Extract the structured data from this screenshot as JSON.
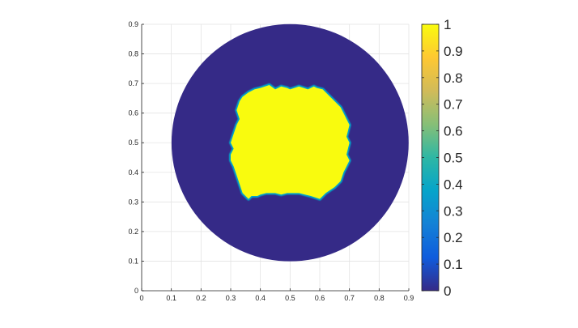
{
  "chart_data": {
    "type": "heatmap",
    "title": "",
    "xlabel": "",
    "ylabel": "",
    "xlim": [
      0,
      0.9
    ],
    "ylim": [
      0,
      0.9
    ],
    "grid": true,
    "x_ticks": [
      "0",
      "0.1",
      "0.2",
      "0.3",
      "0.4",
      "0.5",
      "0.6",
      "0.7",
      "0.8",
      "0.9"
    ],
    "y_ticks": [
      "0",
      "0.1",
      "0.2",
      "0.3",
      "0.4",
      "0.5",
      "0.6",
      "0.7",
      "0.8",
      "0.9"
    ],
    "domain": {
      "shape": "disk",
      "center": [
        0.5,
        0.5
      ],
      "radius": 0.4,
      "value": 0
    },
    "region": {
      "value": 1,
      "outline_x": [
        0.36,
        0.37,
        0.39,
        0.4,
        0.42,
        0.45,
        0.47,
        0.49,
        0.5,
        0.53,
        0.55,
        0.57,
        0.6,
        0.62,
        0.65,
        0.67,
        0.68,
        0.69,
        0.7,
        0.69,
        0.7,
        0.69,
        0.7,
        0.69,
        0.68,
        0.67,
        0.65,
        0.63,
        0.61,
        0.59,
        0.58,
        0.56,
        0.53,
        0.5,
        0.49,
        0.47,
        0.45,
        0.43,
        0.4,
        0.38,
        0.36,
        0.34,
        0.33,
        0.32,
        0.33,
        0.32,
        0.31,
        0.3,
        0.31,
        0.3,
        0.3,
        0.31,
        0.32,
        0.33,
        0.34
      ],
      "outline_y": [
        0.31,
        0.32,
        0.32,
        0.325,
        0.33,
        0.33,
        0.325,
        0.33,
        0.33,
        0.33,
        0.325,
        0.32,
        0.31,
        0.33,
        0.35,
        0.37,
        0.4,
        0.42,
        0.44,
        0.46,
        0.5,
        0.52,
        0.56,
        0.58,
        0.6,
        0.62,
        0.64,
        0.66,
        0.68,
        0.685,
        0.69,
        0.68,
        0.69,
        0.68,
        0.685,
        0.69,
        0.68,
        0.695,
        0.685,
        0.68,
        0.67,
        0.655,
        0.64,
        0.61,
        0.58,
        0.56,
        0.53,
        0.5,
        0.48,
        0.46,
        0.44,
        0.42,
        0.39,
        0.36,
        0.33
      ]
    },
    "colormap": {
      "name": "parula",
      "stops": [
        "#352a87",
        "#0f5cdd",
        "#1481d6",
        "#06a4ca",
        "#2eb7a4",
        "#87bf77",
        "#d1bb59",
        "#fec832",
        "#f9fb0e"
      ]
    },
    "colorbar": {
      "ticks": [
        "0",
        "0.1",
        "0.2",
        "0.3",
        "0.4",
        "0.5",
        "0.6",
        "0.7",
        "0.8",
        "0.9",
        "1"
      ],
      "range": [
        0,
        1
      ]
    }
  }
}
